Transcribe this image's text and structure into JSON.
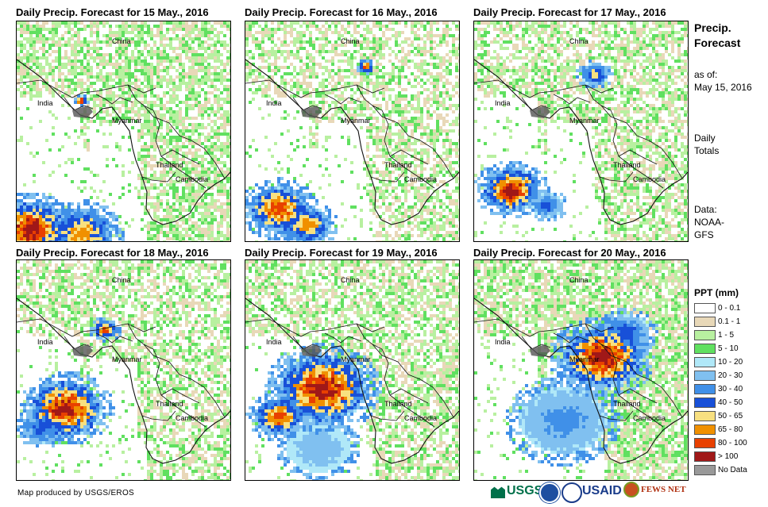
{
  "panels": [
    {
      "title": "Daily Precip. Forecast for 15 May., 2016",
      "key": "d15"
    },
    {
      "title": "Daily Precip. Forecast for 16 May., 2016",
      "key": "d16"
    },
    {
      "title": "Daily Precip. Forecast for 17 May., 2016",
      "key": "d17"
    },
    {
      "title": "Daily Precip. Forecast for 18 May., 2016",
      "key": "d18"
    },
    {
      "title": "Daily Precip. Forecast for 19 May., 2016",
      "key": "d19"
    },
    {
      "title": "Daily Precip. Forecast for 20 May., 2016",
      "key": "d20"
    }
  ],
  "map_labels": {
    "china": "China",
    "india": "India",
    "myanmar": "Myanmar",
    "thailand": "Thailand",
    "cambodia": "Cambodia"
  },
  "sidebar": {
    "title_line1": "Precip.",
    "title_line2": "Forecast",
    "asof_line1": "as of:",
    "asof_line2": "May 15, 2016",
    "totals_line1": "Daily",
    "totals_line2": "Totals",
    "data_line1": "Data:",
    "data_line2": "NOAA-",
    "data_line3": "GFS"
  },
  "legend": {
    "title": "PPT (mm)",
    "items": [
      {
        "label": "0 - 0.1",
        "color": "#ffffff"
      },
      {
        "label": "0.1 - 1",
        "color": "#e8d8b8"
      },
      {
        "label": "1 - 5",
        "color": "#b8f0a0"
      },
      {
        "label": "5 - 10",
        "color": "#60e060"
      },
      {
        "label": "10 - 20",
        "color": "#b0e8f8"
      },
      {
        "label": "20 - 30",
        "color": "#80c0f0"
      },
      {
        "label": "30 - 40",
        "color": "#4090e8"
      },
      {
        "label": "40 - 50",
        "color": "#1850d8"
      },
      {
        "label": "50 - 65",
        "color": "#f8e080"
      },
      {
        "label": "65 - 80",
        "color": "#f09000"
      },
      {
        "label": "80 - 100",
        "color": "#e84000"
      },
      {
        "label": "> 100",
        "color": "#a01818"
      },
      {
        "label": "No Data",
        "color": "#999999"
      }
    ]
  },
  "credit": "Map produced by USGS/EROS",
  "logos": {
    "usgs": "USGS",
    "usaid": "USAID",
    "fewsnet": "FEWS NET"
  }
}
